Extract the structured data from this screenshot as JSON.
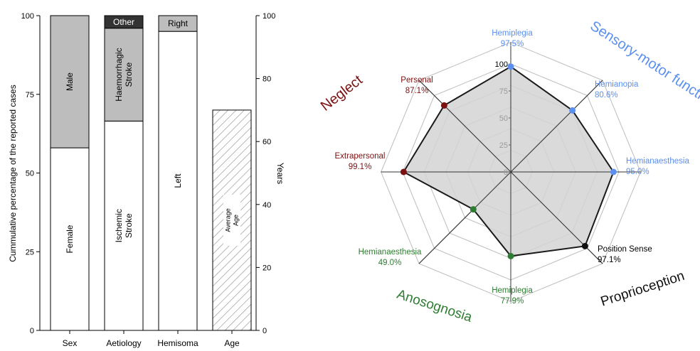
{
  "chart_data": [
    {
      "type": "bar",
      "stacked": true,
      "categories": [
        "Sex",
        "Aetiology",
        "Hemisoma",
        "Age"
      ],
      "ylabel": "Cummulative percentage of the reported cases",
      "y2label": "Years",
      "ylim": [
        0,
        100
      ],
      "y2lim": [
        0,
        100
      ],
      "yticks": [
        0,
        25,
        50,
        75,
        100
      ],
      "y2ticks": [
        0,
        20,
        40,
        60,
        80,
        100
      ],
      "stacks": [
        {
          "category": "Sex",
          "segments": [
            {
              "name": "Female",
              "value": 58,
              "fill": "#ffffff"
            },
            {
              "name": "Male",
              "value": 42,
              "fill": "#bdbdbd"
            }
          ]
        },
        {
          "category": "Aetiology",
          "segments": [
            {
              "name": "Ischemic Stroke",
              "value": 66.5,
              "fill": "#ffffff"
            },
            {
              "name": "Haemorrhagic Stroke",
              "value": 29.5,
              "fill": "#bdbdbd"
            },
            {
              "name": "Other",
              "value": 4,
              "fill": "#333333"
            }
          ]
        },
        {
          "category": "Hemisoma",
          "segments": [
            {
              "name": "Left",
              "value": 95,
              "fill": "#ffffff"
            },
            {
              "name": "Right",
              "value": 5,
              "fill": "#bdbdbd"
            }
          ]
        },
        {
          "category": "Age",
          "axis": "y2",
          "segments": [
            {
              "name": "Average Age",
              "value": 70,
              "fill": "hatch"
            }
          ]
        }
      ]
    },
    {
      "type": "radar",
      "rlim": [
        0,
        100
      ],
      "rticks": [
        0,
        25,
        50,
        75,
        100
      ],
      "groups": [
        {
          "name": "Sensory-motor function",
          "color": "#5b8ff0"
        },
        {
          "name": "Proprioception",
          "color": "#111111"
        },
        {
          "name": "Anosognosia",
          "color": "#2e7d32"
        },
        {
          "name": "Neglect",
          "color": "#7b1111"
        }
      ],
      "axes": [
        {
          "label": "Hemiplegia",
          "value": 97.5,
          "value_label": "97.5%",
          "group": "Sensory-motor function"
        },
        {
          "label": "Hemianopia",
          "value": 80.6,
          "value_label": "80.6%",
          "group": "Sensory-motor function"
        },
        {
          "label": "Hemianaesthesia",
          "value": 95.0,
          "value_label": "95.0%",
          "group": "Sensory-motor function"
        },
        {
          "label": "Position Sense",
          "value": 97.1,
          "value_label": "97.1%",
          "group": "Proprioception"
        },
        {
          "label": "Hemiplegia",
          "value": 77.9,
          "value_label": "77.9%",
          "group": "Anosognosia"
        },
        {
          "label": "Hemianaesthesia",
          "value": 49.0,
          "value_label": "49.0%",
          "group": "Anosognosia"
        },
        {
          "label": "Extrapersonal",
          "value": 99.1,
          "value_label": "99.1%",
          "group": "Neglect"
        },
        {
          "label": "Personal",
          "value": 87.1,
          "value_label": "87.1%",
          "group": "Neglect"
        }
      ],
      "fill": "#d3d3d3",
      "line": "#1a1a1a"
    }
  ]
}
